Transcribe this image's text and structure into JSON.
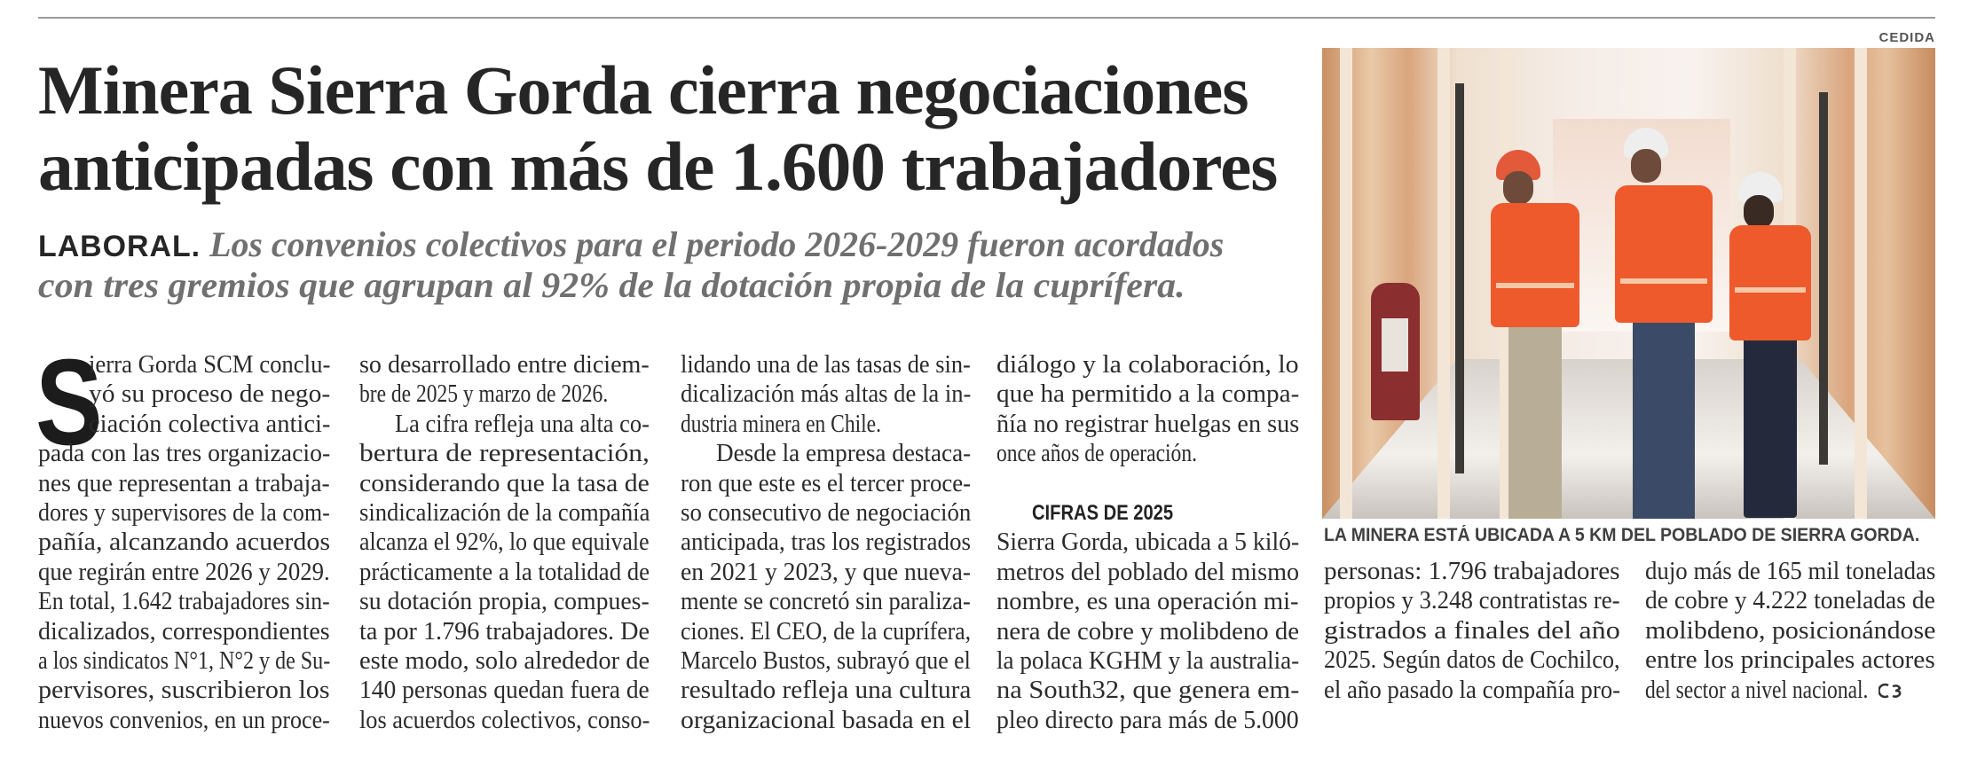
{
  "article": {
    "headline": [
      "Minera Sierra Gorda cierra negociaciones",
      "anticipadas con más de 1.600 trabajadores"
    ],
    "kicker": "LABORAL.",
    "subhead": [
      "Los convenios colectivos para el periodo 2026-2029 fueron acordados",
      "con tres gremios que agrupan al 92% de la dotación propia de la cuprífera."
    ],
    "drop_cap": "S",
    "columns": [
      {
        "blocks": [
          {
            "type": "paragraph",
            "lines": [
              "ierra Gorda SCM conclu-",
              "yó su proceso de nego-",
              "ciación colectiva antici-",
              "pada con las tres organizacio-",
              "nes que representan a trabaja-",
              "dores y supervisores de la com-",
              "pañía, alcanzando acuerdos",
              "que regirán entre 2026 y 2029.",
              "En total, 1.642 trabajadores sin-",
              "dicalizados, correspondientes",
              "a los sindicatos N°1, N°2 y de Su-",
              "pervisores, suscribieron los",
              "nuevos convenios, en un proce-"
            ]
          }
        ]
      },
      {
        "blocks": [
          {
            "type": "paragraph",
            "lines": [
              "so desarrollado entre diciem-",
              "bre de 2025 y marzo de 2026."
            ]
          },
          {
            "type": "paragraph",
            "lines": [
              "La cifra refleja una alta co-",
              "bertura de representación,",
              "considerando que la tasa de",
              "sindicalización de la compañía",
              "alcanza el 92%, lo que equivale",
              "prácticamente a la totalidad de",
              "su dotación propia, compues-",
              "ta por 1.796 trabajadores. De",
              "este modo, solo alrededor de",
              "140 personas quedan fuera de",
              "los acuerdos colectivos, conso-"
            ]
          }
        ]
      },
      {
        "blocks": [
          {
            "type": "paragraph",
            "lines": [
              "lidando una de las tasas de sin-",
              "dicalización más altas de la in-",
              "dustria minera en Chile."
            ]
          },
          {
            "type": "paragraph",
            "lines": [
              "Desde la empresa destaca-",
              "ron que este es el tercer proce-",
              "so consecutivo de negociación",
              "anticipada, tras los registrados",
              "en 2021 y 2023, y que nueva-",
              "mente se concretó sin paraliza-",
              "ciones. El CEO, de la cuprífera,",
              "Marcelo Bustos, subrayó que el",
              "resultado refleja una cultura",
              "organizacional basada en el"
            ]
          }
        ]
      },
      {
        "blocks": [
          {
            "type": "paragraph",
            "lines": [
              "diálogo y la colaboración, lo",
              "que ha permitido a la compa-",
              "ñía no registrar huelgas en sus",
              "once años de operación."
            ]
          },
          {
            "type": "heading",
            "lines": [
              "CIFRAS DE 2025"
            ]
          },
          {
            "type": "paragraph",
            "lines": [
              "Sierra Gorda, ubicada a 5 kiló-",
              "metros del poblado del mismo",
              "nombre, es una operación mi-",
              "nera de cobre y molibdeno de",
              "la polaca KGHM y la australia-",
              "na South32, que genera em-",
              "pleo directo para más de 5.000"
            ]
          }
        ]
      },
      {
        "blocks": [
          {
            "type": "paragraph",
            "lines": [
              "personas: 1.796 trabajadores",
              "propios y 3.248 contratistas re-",
              "gistrados a finales del año",
              "2025. Según datos de Cochilco,",
              "el año pasado la compañía pro-"
            ]
          }
        ]
      },
      {
        "blocks": [
          {
            "type": "paragraph",
            "lines": [
              "dujo más de 165 mil toneladas",
              "de cobre y 4.222 toneladas de",
              "molibdeno, posicionándose",
              "entre los principales actores",
              "del sector a nivel nacional."
            ]
          }
        ]
      }
    ],
    "end_mark_icon": "publication-end-mark",
    "photo": {
      "credit": "CEDIDA",
      "caption": "LA MINERA ESTÁ UBICADA A 5 KM DEL POBLADO DE SIERRA GORDA."
    }
  },
  "colors": {
    "text": "#2b2b2b",
    "subhead": "#707070",
    "vest": "#ee5a2c"
  }
}
